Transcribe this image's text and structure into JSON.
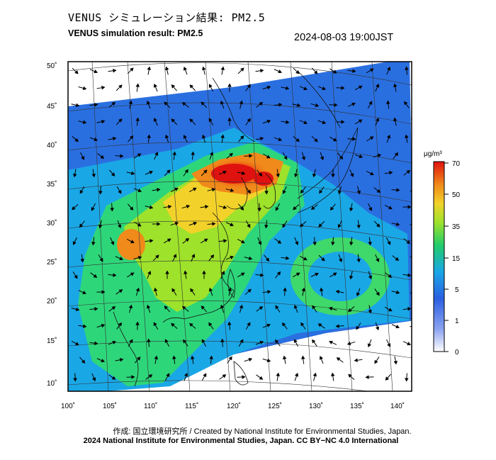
{
  "header": {
    "title_jp": "VENUS シミュレーション結果: PM2.5",
    "title_en": "VENUS simulation result: PM2.5",
    "timestamp": "2024-08-03 19:00JST"
  },
  "axes": {
    "lat_labels": [
      "50˚",
      "45˚",
      "40˚",
      "35˚",
      "30˚",
      "25˚",
      "20˚",
      "15˚",
      "10˚"
    ],
    "lon_labels": [
      "100˚",
      "105˚",
      "110˚",
      "115˚",
      "120˚",
      "125˚",
      "130˚",
      "135˚",
      "140˚"
    ]
  },
  "colorbar": {
    "unit": "μg/m³",
    "ticks": [
      "70",
      "50",
      "35",
      "15",
      "5",
      "1",
      "0"
    ],
    "colors": [
      "#ffffff",
      "#3a5be0",
      "#1aa7e6",
      "#2ed67a",
      "#9ee22b",
      "#f2d22a",
      "#f08a1a",
      "#e0120f"
    ]
  },
  "footer": {
    "credit_line": "作成: 国立環境研究所 / Created by National Institute for Environmental Studies, Japan.",
    "license_line": "2024 National Institute for Environmental Studies, Japan. CC BY−NC 4.0 International"
  }
}
